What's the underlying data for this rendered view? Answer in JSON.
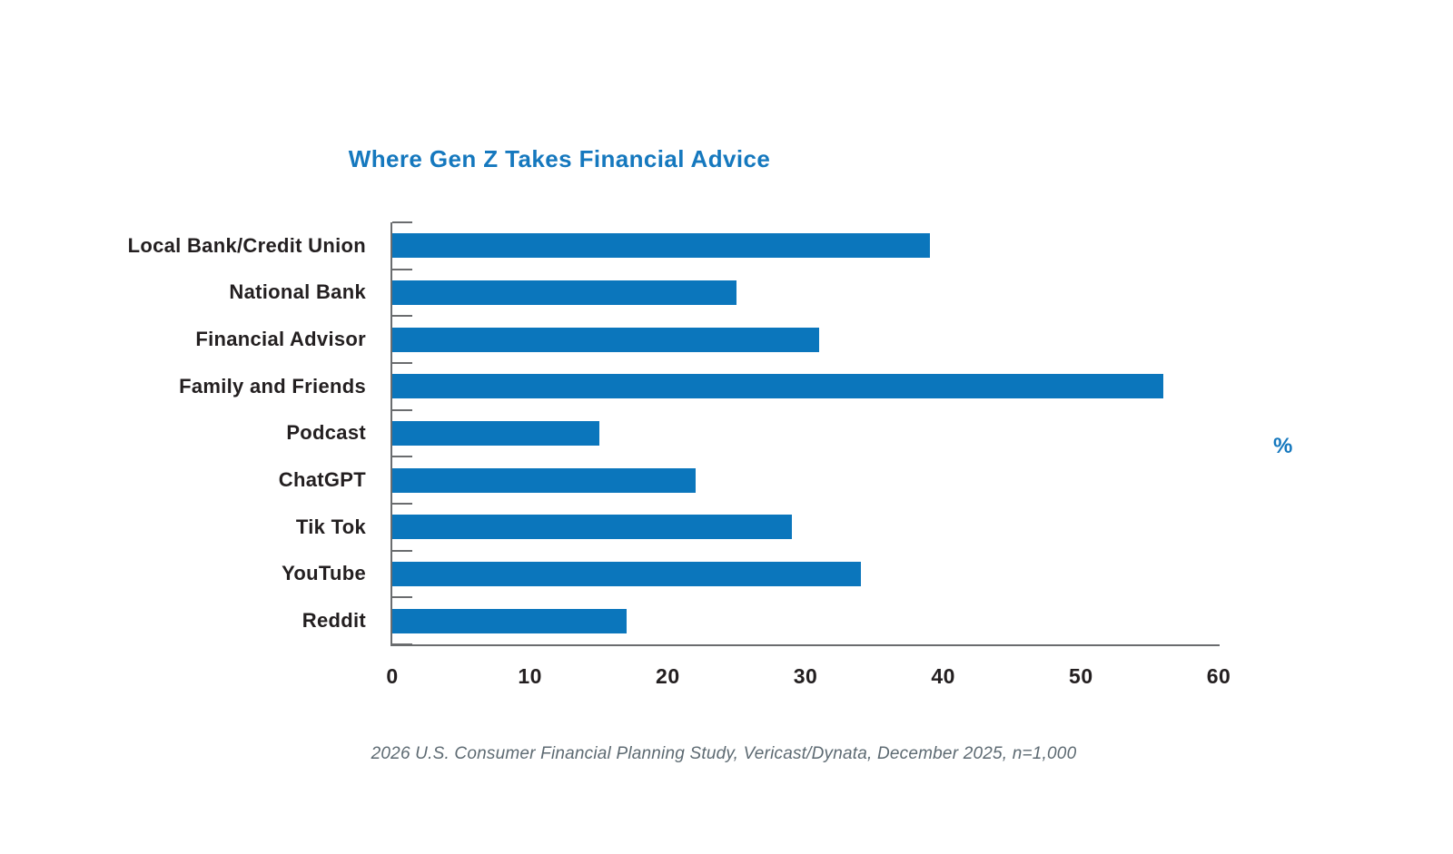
{
  "chart_data": {
    "type": "bar",
    "orientation": "horizontal",
    "title": "Where Gen Z Takes Financial Advice",
    "categories": [
      "Local Bank/Credit Union",
      "National Bank",
      "Financial Advisor",
      "Family and Friends",
      "Podcast",
      "ChatGPT",
      "Tik Tok",
      "YouTube",
      "Reddit"
    ],
    "values": [
      39,
      25,
      31,
      56,
      15,
      22,
      29,
      34,
      17
    ],
    "xlabel": "%",
    "xlim": [
      0,
      60
    ],
    "x_ticks": [
      0,
      10,
      20,
      30,
      40,
      50,
      60
    ],
    "grid": false,
    "legend": "none"
  },
  "colors": {
    "bar": "#0b76bc",
    "title": "#1578be",
    "unit_label": "#1578be",
    "axis": "#6a6c6e",
    "tick_text": "#231f20",
    "category_text": "#231f20",
    "footnote_text": "#5d6a72"
  },
  "footer": {
    "source_note": "2026 U.S. Consumer Financial Planning Study, Vericast/Dynata, December 2025, n=1,000"
  }
}
